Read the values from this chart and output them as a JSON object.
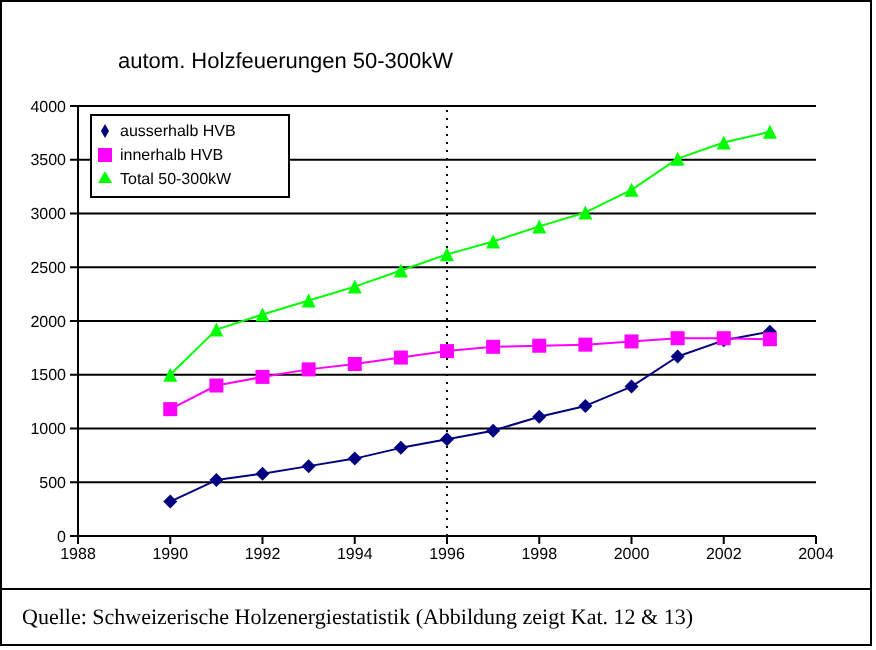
{
  "chart_data": {
    "type": "line",
    "title": "autom. Holzfeuerungen 50-300kW",
    "x": [
      1990,
      1991,
      1992,
      1993,
      1994,
      1995,
      1996,
      1997,
      1998,
      1999,
      2000,
      2001,
      2002,
      2003
    ],
    "series": [
      {
        "name": "ausserhalb HVB",
        "color": "#000080",
        "marker": "diamond",
        "values": [
          320,
          520,
          580,
          650,
          720,
          820,
          900,
          980,
          1110,
          1210,
          1390,
          1670,
          1820,
          1900
        ]
      },
      {
        "name": "innerhalb HVB",
        "color": "#ff00ff",
        "marker": "square",
        "values": [
          1180,
          1400,
          1480,
          1550,
          1600,
          1660,
          1720,
          1760,
          1770,
          1780,
          1810,
          1840,
          1840,
          1830
        ]
      },
      {
        "name": "Total 50-300kW",
        "color": "#00ff00",
        "marker": "triangle",
        "values": [
          1500,
          1920,
          2060,
          2190,
          2320,
          2470,
          2620,
          2740,
          2880,
          3010,
          3220,
          3510,
          3660,
          3760
        ]
      }
    ],
    "xlim": [
      1988,
      2004
    ],
    "xticks": [
      1988,
      1990,
      1992,
      1994,
      1996,
      1998,
      2000,
      2002,
      2004
    ],
    "ylim": [
      0,
      4000
    ],
    "yticks": [
      0,
      500,
      1000,
      1500,
      2000,
      2500,
      3000,
      3500,
      4000
    ],
    "grid": "y",
    "legend": "top left",
    "ref_lines": [
      {
        "axis": "x",
        "value": 1996,
        "color": "#000000",
        "line_style": "dotted"
      }
    ],
    "annotations": [
      "Quelle: Schweizerische Holzenergiestatistik (Abbildung zeigt Kat. 12 & 13)"
    ]
  }
}
